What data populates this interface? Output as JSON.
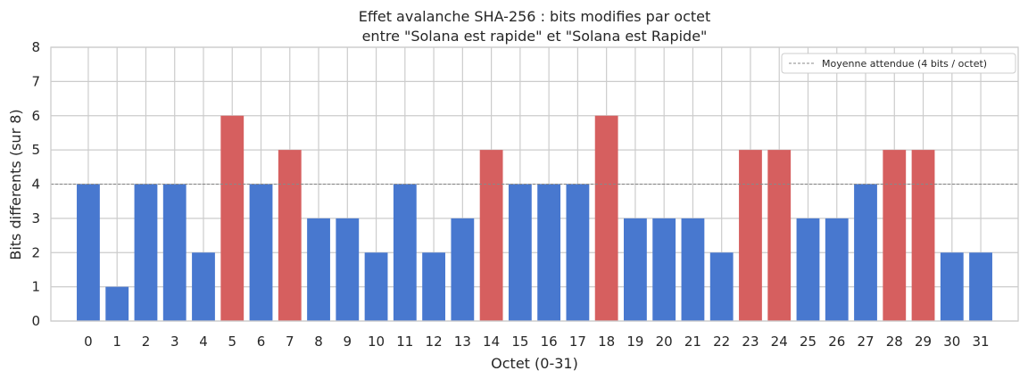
{
  "chart_data": {
    "type": "bar",
    "title_line1": "Effet avalanche SHA-256 : bits modifies par octet",
    "title_line2": "entre \"Solana est rapide\" et \"Solana est Rapide\"",
    "xlabel": "Octet (0-31)",
    "ylabel": "Bits differents (sur 8)",
    "categories": [
      "0",
      "1",
      "2",
      "3",
      "4",
      "5",
      "6",
      "7",
      "8",
      "9",
      "10",
      "11",
      "12",
      "13",
      "14",
      "15",
      "16",
      "17",
      "18",
      "19",
      "20",
      "21",
      "22",
      "23",
      "24",
      "25",
      "26",
      "27",
      "28",
      "29",
      "30",
      "31"
    ],
    "values": [
      4,
      1,
      4,
      4,
      2,
      6,
      4,
      5,
      3,
      3,
      2,
      4,
      2,
      3,
      5,
      4,
      4,
      4,
      6,
      3,
      3,
      3,
      2,
      5,
      5,
      3,
      3,
      4,
      5,
      5,
      2,
      2
    ],
    "ylim": [
      0,
      8
    ],
    "yticks": [
      0,
      1,
      2,
      3,
      4,
      5,
      6,
      7,
      8
    ],
    "grid": true,
    "reference_line": {
      "value": 4,
      "label": "Moyenne attendue (4 bits / octet)",
      "color": "#888888"
    },
    "colors": {
      "below_or_equal": "#4878cf",
      "above": "#d65f5f"
    },
    "legend_position": "top-right"
  }
}
